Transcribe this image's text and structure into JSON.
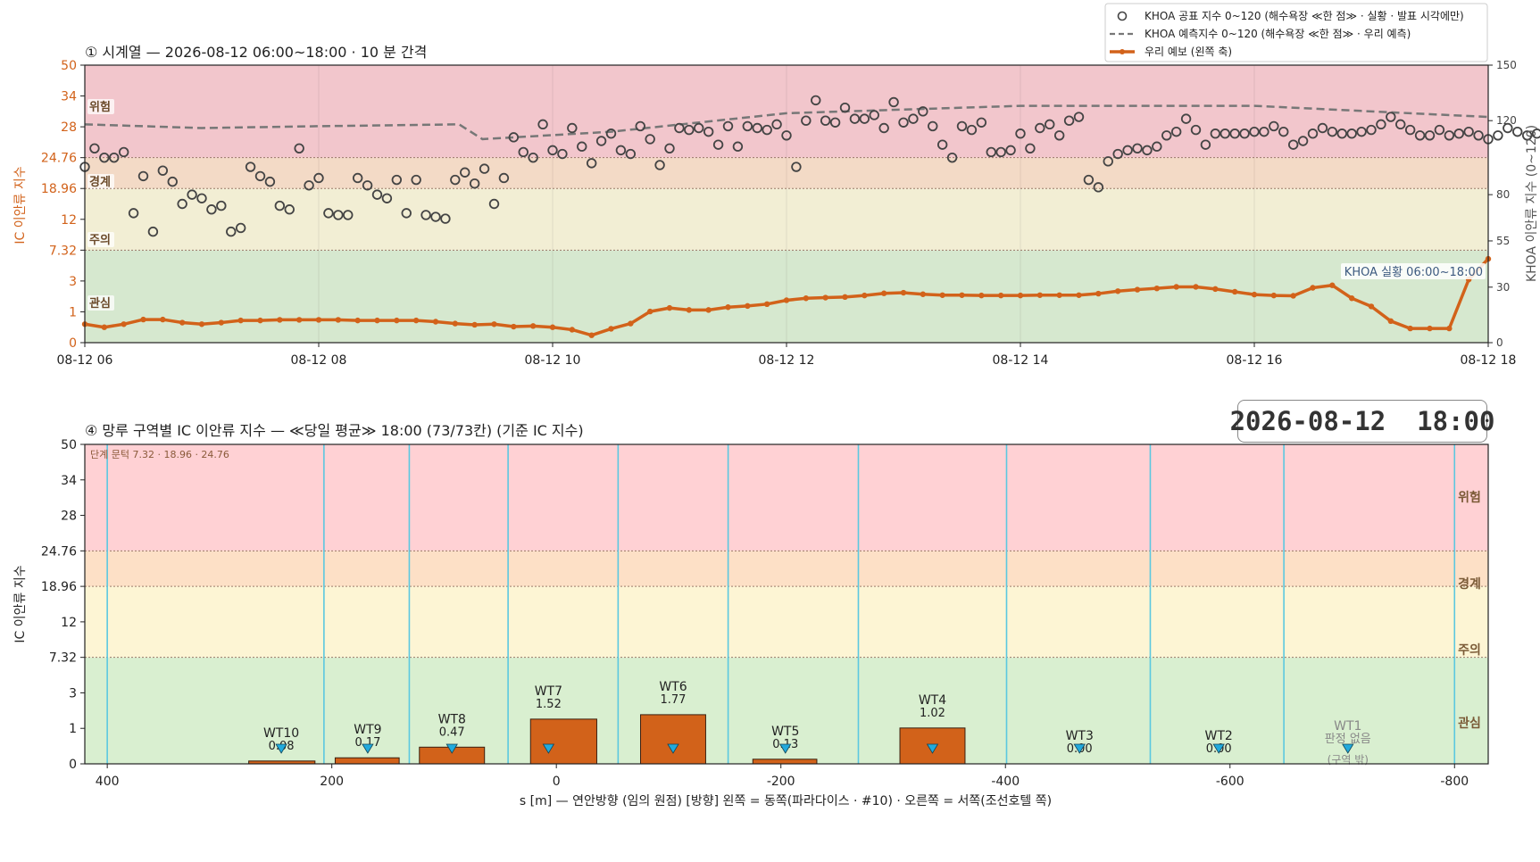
{
  "stamp": "2026-08-12  18:00",
  "legend": [
    {
      "label": "KHOA 공표 지수 0~120 (해수욕장 ≪한 점≫ · 실황 · 발표 시각에만)",
      "marker": "circle"
    },
    {
      "label": "KHOA 예측지수 0~120 (해수욕장 ≪한 점≫ · 우리 예측)",
      "marker": "dashed"
    },
    {
      "label": "우리 예보 (왼쪽 축)",
      "marker": "line-dot"
    }
  ],
  "colors": {
    "forecast": "#d2621a",
    "khoa": "#444444",
    "khoa_pred": "#777777",
    "band_danger": "#f2c6cc",
    "band_warn": "#f3dac6",
    "band_caution": "#f2eed4",
    "band_interest": "#d6e8cf",
    "wt_line": "#5bc8e0",
    "marker": "#22aadd"
  },
  "chart_data": [
    {
      "type": "line",
      "title": "① 시계열 — 2026-08-12 06:00~18:00 · 10 분 간격",
      "ylabel": "IC 이안류 지수",
      "y2label": "KHOA 이안류 지수 (0~120)",
      "x_ticks": [
        "08-12 06",
        "08-12 08",
        "08-12 10",
        "08-12 12",
        "08-12 14",
        "08-12 16",
        "08-12 18"
      ],
      "x_range_hours": [
        6,
        18
      ],
      "y_ticks": [
        0,
        1,
        3,
        7.32,
        12,
        18.96,
        24.76,
        28,
        34,
        50
      ],
      "y2_ticks": [
        0,
        30,
        55,
        80,
        120,
        150
      ],
      "y2_range": [
        0,
        150
      ],
      "bands": [
        "관심",
        "주의",
        "경계",
        "위험"
      ],
      "annotation": "KHOA 실황 06:00~18:00",
      "series": [
        {
          "name": "우리 예보 (왼쪽 축)",
          "axis": "left",
          "x_step_minutes": 10,
          "values": [
            0.6,
            0.5,
            0.6,
            0.75,
            0.75,
            0.65,
            0.6,
            0.65,
            0.72,
            0.72,
            0.74,
            0.74,
            0.74,
            0.74,
            0.72,
            0.72,
            0.72,
            0.72,
            0.68,
            0.62,
            0.58,
            0.6,
            0.52,
            0.54,
            0.5,
            0.42,
            0.24,
            0.45,
            0.62,
            1.02,
            1.25,
            1.12,
            1.12,
            1.3,
            1.38,
            1.5,
            1.75,
            1.88,
            1.92,
            1.96,
            2.06,
            2.2,
            2.24,
            2.14,
            2.08,
            2.08,
            2.06,
            2.06,
            2.06,
            2.08,
            2.08,
            2.08,
            2.18,
            2.34,
            2.44,
            2.52,
            2.62,
            2.62,
            2.48,
            2.3,
            2.12,
            2.06,
            2.04,
            2.56,
            2.72,
            1.88,
            1.35,
            0.7,
            0.46,
            0.46,
            0.46,
            3.2,
            6.1
          ]
        },
        {
          "name": "KHOA 공표 지수 0~120 (해수욕장 ≪한 점≫ · 실황 · 발표 시각에만)",
          "axis": "right",
          "x_step_minutes": 5,
          "values": [
            95,
            105,
            100,
            100,
            103,
            70,
            90,
            60,
            93,
            87,
            75,
            80,
            78,
            72,
            74,
            60,
            62,
            95,
            90,
            87,
            74,
            72,
            105,
            85,
            89,
            70,
            69,
            69,
            89,
            85,
            80,
            78,
            88,
            70,
            88,
            69,
            68,
            67,
            88,
            92,
            86,
            94,
            75,
            89,
            111,
            103,
            100,
            118,
            104,
            102,
            116,
            106,
            97,
            109,
            113,
            104,
            102,
            117,
            110,
            96,
            105,
            116,
            115,
            116,
            114,
            107,
            117,
            106,
            117,
            116,
            115,
            118,
            112,
            95,
            120,
            131,
            120,
            119,
            127,
            121,
            121,
            123,
            116,
            130,
            119,
            121,
            125,
            117,
            107,
            100,
            117,
            115,
            119,
            103,
            103,
            104,
            113,
            105,
            116,
            118,
            112,
            120,
            122,
            88,
            84,
            98,
            102,
            104,
            105,
            104,
            106,
            112,
            114,
            121,
            115,
            107,
            113,
            113,
            113,
            113,
            114,
            114,
            117,
            114,
            107,
            109,
            113,
            116,
            114,
            113,
            113,
            114,
            115,
            118,
            122,
            118,
            115,
            112,
            112,
            115,
            112,
            113,
            114,
            112,
            110,
            112,
            116,
            114,
            112,
            113,
            119,
            107,
            115,
            113,
            117,
            102,
            106,
            118,
            113,
            108,
            113,
            117,
            104,
            113,
            105,
            111,
            101,
            117,
            112,
            110,
            115,
            103,
            108,
            107,
            110,
            106,
            126,
            100,
            125,
            118,
            119,
            106,
            110,
            115,
            113,
            112
          ]
        },
        {
          "name": "KHOA 예측지수 0~120 (해수욕장 ≪한 점≫ · 우리 예측)",
          "axis": "right",
          "style": "dashed",
          "x_hours": [
            6,
            7,
            8,
            9.2,
            9.4,
            10.5,
            12,
            14,
            16,
            18
          ],
          "values": [
            118,
            116,
            117,
            118,
            110,
            114,
            124,
            128,
            128,
            122
          ]
        }
      ]
    },
    {
      "type": "bar",
      "title": "④ 망루 구역별 IC 이안류 지수 — ≪당일 평균≫ 18:00  (73/73칸)   (기준 IC 지수)",
      "xlabel": "s [m] — 연안방향 (임의 원점)     [방향] 왼쪽 = 동쪽(파라다이스 · #10) · 오른쪽 = 서쪽(조선호텔 쪽)",
      "ylabel": "IC 이안류 지수",
      "note": "단계 문턱 7.32 · 18.96 · 24.76",
      "x_ticks": [
        400,
        200,
        0,
        -200,
        -400,
        -600,
        -800
      ],
      "xlim": [
        420,
        -830
      ],
      "y_ticks": [
        0,
        1,
        3,
        7.32,
        12,
        18.96,
        24.76,
        28,
        34,
        50
      ],
      "bands": [
        "관심",
        "주의",
        "경계",
        "위험"
      ],
      "boundaries": [
        400,
        207,
        131,
        43,
        -55,
        -153,
        -269,
        -401,
        -529,
        -648,
        -800
      ],
      "bars": [
        {
          "name": "WT10",
          "value": 0.08,
          "label": "0.08",
          "range": [
            274,
            215
          ],
          "center": 245
        },
        {
          "name": "WT9",
          "value": 0.17,
          "label": "0.17",
          "range": [
            197,
            140
          ],
          "center": 168
        },
        {
          "name": "WT8",
          "value": 0.47,
          "label": "0.47",
          "range": [
            122,
            64
          ],
          "center": 93
        },
        {
          "name": "WT7",
          "value": 1.52,
          "label": "1.52",
          "range": [
            23,
            -36
          ],
          "center": 7
        },
        {
          "name": "WT6",
          "value": 1.77,
          "label": "1.77",
          "range": [
            -75,
            -133
          ],
          "center": -104
        },
        {
          "name": "WT5",
          "value": 0.13,
          "label": "0.13",
          "range": [
            -175,
            -232
          ],
          "center": -204
        },
        {
          "name": "WT4",
          "value": 1.02,
          "label": "1.02",
          "range": [
            -306,
            -364
          ],
          "center": -335
        },
        {
          "name": "WT3",
          "value": 0.0,
          "label": "0.00",
          "range": null,
          "center": -466
        },
        {
          "name": "WT2",
          "value": 0.0,
          "label": "0.00",
          "range": null,
          "center": -590
        },
        {
          "name": "WT1",
          "value": null,
          "label": "판정 없음",
          "sublabel": "(구역 밖)",
          "range": null,
          "center": -705
        }
      ]
    }
  ]
}
